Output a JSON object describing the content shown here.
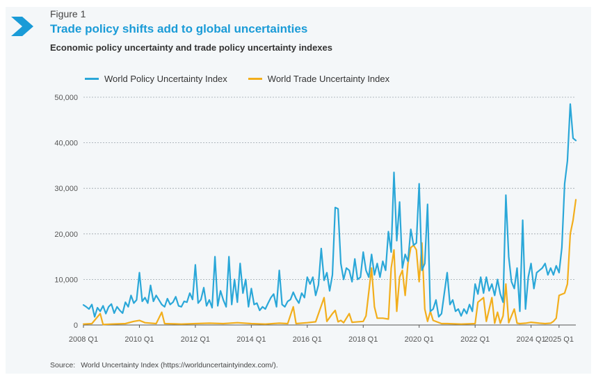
{
  "figure_label": "Figure 1",
  "title": "Trade policy shifts add to global uncertainties",
  "subtitle": "Economic policy uncertainty and trade policy uncertainty indexes",
  "source_label": "Source:",
  "source_text": "World Uncertainty Index (https://worlduncertaintyindex.com/).",
  "colors": {
    "wui": "#2aa7d8",
    "wtui": "#f2ae1c",
    "grid": "#9aa4aa",
    "accent": "#1a9bd7"
  },
  "chart_data": {
    "type": "line",
    "title": "Trade policy shifts add to global uncertainties",
    "ylim": [
      0,
      50000
    ],
    "y_ticks": [
      0,
      10000,
      20000,
      30000,
      40000,
      50000
    ],
    "y_tick_labels": [
      "0",
      "10,000",
      "20,000",
      "30,000",
      "40,000",
      "50,000"
    ],
    "x_tick_labels": [
      "2008 Q1",
      "2010 Q1",
      "2012 Q1",
      "2014 Q1",
      "2016 Q1",
      "2018 Q1",
      "2020 Q1",
      "2022 Q1",
      "2024 Q1",
      "2025 Q1"
    ],
    "x_tick_values": [
      2008.0,
      2010.0,
      2012.0,
      2014.0,
      2016.0,
      2018.0,
      2020.0,
      2022.0,
      2024.0,
      2025.0
    ],
    "xlim": [
      2008.0,
      2025.6
    ],
    "grid": true,
    "legend": "top-left",
    "series": [
      {
        "name": "World Policy Uncertainty Index",
        "points": [
          [
            2008.0,
            4400
          ],
          [
            2008.1,
            4000
          ],
          [
            2008.2,
            3500
          ],
          [
            2008.3,
            4500
          ],
          [
            2008.4,
            1800
          ],
          [
            2008.5,
            3800
          ],
          [
            2008.6,
            3000
          ],
          [
            2008.7,
            4200
          ],
          [
            2008.8,
            2500
          ],
          [
            2008.9,
            4000
          ],
          [
            2009.0,
            4600
          ],
          [
            2009.1,
            2600
          ],
          [
            2009.2,
            4000
          ],
          [
            2009.3,
            3200
          ],
          [
            2009.4,
            2600
          ],
          [
            2009.5,
            5000
          ],
          [
            2009.6,
            4000
          ],
          [
            2009.7,
            6500
          ],
          [
            2009.8,
            4800
          ],
          [
            2009.9,
            5500
          ],
          [
            2010.0,
            11500
          ],
          [
            2010.1,
            5200
          ],
          [
            2010.2,
            6000
          ],
          [
            2010.3,
            4800
          ],
          [
            2010.4,
            8700
          ],
          [
            2010.5,
            5200
          ],
          [
            2010.6,
            6500
          ],
          [
            2010.7,
            5500
          ],
          [
            2010.8,
            4500
          ],
          [
            2010.9,
            4000
          ],
          [
            2011.0,
            5800
          ],
          [
            2011.1,
            4500
          ],
          [
            2011.2,
            5000
          ],
          [
            2011.3,
            6200
          ],
          [
            2011.4,
            4200
          ],
          [
            2011.5,
            4000
          ],
          [
            2011.6,
            5200
          ],
          [
            2011.7,
            5000
          ],
          [
            2011.8,
            7000
          ],
          [
            2011.9,
            5600
          ],
          [
            2012.0,
            13200
          ],
          [
            2012.1,
            4800
          ],
          [
            2012.2,
            5600
          ],
          [
            2012.3,
            8200
          ],
          [
            2012.4,
            4200
          ],
          [
            2012.5,
            5500
          ],
          [
            2012.6,
            3800
          ],
          [
            2012.7,
            15000
          ],
          [
            2012.8,
            4200
          ],
          [
            2012.9,
            7500
          ],
          [
            2013.0,
            5500
          ],
          [
            2013.1,
            4000
          ],
          [
            2013.2,
            15000
          ],
          [
            2013.3,
            4500
          ],
          [
            2013.4,
            10000
          ],
          [
            2013.5,
            5000
          ],
          [
            2013.6,
            13500
          ],
          [
            2013.7,
            7000
          ],
          [
            2013.8,
            10000
          ],
          [
            2013.9,
            4000
          ],
          [
            2014.0,
            8000
          ],
          [
            2014.1,
            4500
          ],
          [
            2014.2,
            4800
          ],
          [
            2014.3,
            3200
          ],
          [
            2014.4,
            4000
          ],
          [
            2014.5,
            3500
          ],
          [
            2014.6,
            4800
          ],
          [
            2014.7,
            6000
          ],
          [
            2014.8,
            6800
          ],
          [
            2014.9,
            4000
          ],
          [
            2015.0,
            12000
          ],
          [
            2015.1,
            4500
          ],
          [
            2015.2,
            4000
          ],
          [
            2015.3,
            5200
          ],
          [
            2015.4,
            5600
          ],
          [
            2015.5,
            7200
          ],
          [
            2015.6,
            5800
          ],
          [
            2015.7,
            4800
          ],
          [
            2015.8,
            7000
          ],
          [
            2015.9,
            6000
          ],
          [
            2016.0,
            10500
          ],
          [
            2016.1,
            9000
          ],
          [
            2016.2,
            10500
          ],
          [
            2016.3,
            6500
          ],
          [
            2016.4,
            8800
          ],
          [
            2016.5,
            16800
          ],
          [
            2016.6,
            9800
          ],
          [
            2016.7,
            11500
          ],
          [
            2016.8,
            7500
          ],
          [
            2016.9,
            11000
          ],
          [
            2017.0,
            25800
          ],
          [
            2017.1,
            25500
          ],
          [
            2017.2,
            13500
          ],
          [
            2017.3,
            10000
          ],
          [
            2017.4,
            12500
          ],
          [
            2017.5,
            12000
          ],
          [
            2017.6,
            9500
          ],
          [
            2017.7,
            14500
          ],
          [
            2017.8,
            10000
          ],
          [
            2017.9,
            10500
          ],
          [
            2018.0,
            16000
          ],
          [
            2018.1,
            12000
          ],
          [
            2018.2,
            10500
          ],
          [
            2018.3,
            15500
          ],
          [
            2018.4,
            11000
          ],
          [
            2018.5,
            13500
          ],
          [
            2018.6,
            10500
          ],
          [
            2018.7,
            14000
          ],
          [
            2018.8,
            12000
          ],
          [
            2018.9,
            20500
          ],
          [
            2019.0,
            16000
          ],
          [
            2019.1,
            33500
          ],
          [
            2019.2,
            18500
          ],
          [
            2019.3,
            27000
          ],
          [
            2019.4,
            12500
          ],
          [
            2019.5,
            15500
          ],
          [
            2019.6,
            14000
          ],
          [
            2019.7,
            21000
          ],
          [
            2019.8,
            17500
          ],
          [
            2019.9,
            18000
          ],
          [
            2020.0,
            31000
          ],
          [
            2020.1,
            12000
          ],
          [
            2020.2,
            13500
          ],
          [
            2020.3,
            26500
          ],
          [
            2020.4,
            3000
          ],
          [
            2020.5,
            3500
          ],
          [
            2020.6,
            5500
          ],
          [
            2020.7,
            1800
          ],
          [
            2020.8,
            2500
          ],
          [
            2020.9,
            7000
          ],
          [
            2021.0,
            11500
          ],
          [
            2021.1,
            4500
          ],
          [
            2021.2,
            5500
          ],
          [
            2021.3,
            3000
          ],
          [
            2021.4,
            3500
          ],
          [
            2021.5,
            2000
          ],
          [
            2021.6,
            3500
          ],
          [
            2021.7,
            2500
          ],
          [
            2021.8,
            4500
          ],
          [
            2021.9,
            3000
          ],
          [
            2022.0,
            9000
          ],
          [
            2022.1,
            6800
          ],
          [
            2022.2,
            10500
          ],
          [
            2022.3,
            7000
          ],
          [
            2022.4,
            10500
          ],
          [
            2022.5,
            7500
          ],
          [
            2022.6,
            9000
          ],
          [
            2022.7,
            6500
          ],
          [
            2022.8,
            10000
          ],
          [
            2022.9,
            6800
          ],
          [
            2023.0,
            5000
          ],
          [
            2023.1,
            28500
          ],
          [
            2023.2,
            15000
          ],
          [
            2023.3,
            9500
          ],
          [
            2023.4,
            8000
          ],
          [
            2023.5,
            12500
          ],
          [
            2023.6,
            3000
          ],
          [
            2023.7,
            23000
          ],
          [
            2023.8,
            3500
          ],
          [
            2023.9,
            10500
          ],
          [
            2024.0,
            13500
          ],
          [
            2024.1,
            8000
          ],
          [
            2024.2,
            11500
          ],
          [
            2024.3,
            12000
          ],
          [
            2024.4,
            12500
          ],
          [
            2024.5,
            13500
          ],
          [
            2024.6,
            11000
          ],
          [
            2024.7,
            12500
          ],
          [
            2024.8,
            11000
          ],
          [
            2024.9,
            13000
          ],
          [
            2025.0,
            11500
          ],
          [
            2025.1,
            17000
          ],
          [
            2025.2,
            31000
          ],
          [
            2025.3,
            36000
          ],
          [
            2025.4,
            48500
          ],
          [
            2025.5,
            41000
          ],
          [
            2025.6,
            40500
          ]
        ]
      },
      {
        "name": "World Trade Uncertainty Index",
        "points": [
          [
            2008.0,
            200
          ],
          [
            2008.3,
            300
          ],
          [
            2008.6,
            2500
          ],
          [
            2008.7,
            100
          ],
          [
            2009.0,
            200
          ],
          [
            2009.5,
            300
          ],
          [
            2009.8,
            800
          ],
          [
            2010.0,
            1000
          ],
          [
            2010.2,
            500
          ],
          [
            2010.6,
            300
          ],
          [
            2010.8,
            2800
          ],
          [
            2010.9,
            300
          ],
          [
            2011.5,
            200
          ],
          [
            2012.0,
            300
          ],
          [
            2012.5,
            400
          ],
          [
            2013.0,
            300
          ],
          [
            2013.5,
            500
          ],
          [
            2014.0,
            300
          ],
          [
            2014.5,
            200
          ],
          [
            2015.0,
            400
          ],
          [
            2015.3,
            300
          ],
          [
            2015.5,
            4000
          ],
          [
            2015.6,
            300
          ],
          [
            2016.0,
            500
          ],
          [
            2016.3,
            700
          ],
          [
            2016.6,
            6000
          ],
          [
            2016.7,
            800
          ],
          [
            2016.9,
            2500
          ],
          [
            2017.0,
            3200
          ],
          [
            2017.1,
            700
          ],
          [
            2017.2,
            1000
          ],
          [
            2017.3,
            500
          ],
          [
            2017.5,
            2500
          ],
          [
            2017.6,
            600
          ],
          [
            2018.0,
            800
          ],
          [
            2018.1,
            2000
          ],
          [
            2018.3,
            12500
          ],
          [
            2018.4,
            4000
          ],
          [
            2018.5,
            1500
          ],
          [
            2018.7,
            1500
          ],
          [
            2018.9,
            1300
          ],
          [
            2019.0,
            12500
          ],
          [
            2019.1,
            16500
          ],
          [
            2019.2,
            3000
          ],
          [
            2019.3,
            10500
          ],
          [
            2019.4,
            12000
          ],
          [
            2019.5,
            6500
          ],
          [
            2019.6,
            13500
          ],
          [
            2019.7,
            17000
          ],
          [
            2019.8,
            17500
          ],
          [
            2019.9,
            16500
          ],
          [
            2020.0,
            9500
          ],
          [
            2020.1,
            18000
          ],
          [
            2020.2,
            3500
          ],
          [
            2020.3,
            800
          ],
          [
            2020.4,
            3000
          ],
          [
            2020.5,
            1000
          ],
          [
            2020.8,
            300
          ],
          [
            2021.0,
            300
          ],
          [
            2021.5,
            200
          ],
          [
            2022.0,
            300
          ],
          [
            2022.1,
            5000
          ],
          [
            2022.3,
            6000
          ],
          [
            2022.4,
            800
          ],
          [
            2022.6,
            6000
          ],
          [
            2022.7,
            400
          ],
          [
            2022.8,
            2800
          ],
          [
            2022.9,
            400
          ],
          [
            2023.0,
            2000
          ],
          [
            2023.1,
            9000
          ],
          [
            2023.2,
            500
          ],
          [
            2023.4,
            3500
          ],
          [
            2023.5,
            400
          ],
          [
            2023.6,
            300
          ],
          [
            2023.8,
            400
          ],
          [
            2024.0,
            600
          ],
          [
            2024.3,
            400
          ],
          [
            2024.5,
            300
          ],
          [
            2024.7,
            400
          ],
          [
            2024.8,
            800
          ],
          [
            2024.9,
            1500
          ],
          [
            2025.0,
            6500
          ],
          [
            2025.2,
            7000
          ],
          [
            2025.3,
            9000
          ],
          [
            2025.4,
            20000
          ],
          [
            2025.5,
            23000
          ],
          [
            2025.6,
            27500
          ]
        ]
      }
    ]
  }
}
